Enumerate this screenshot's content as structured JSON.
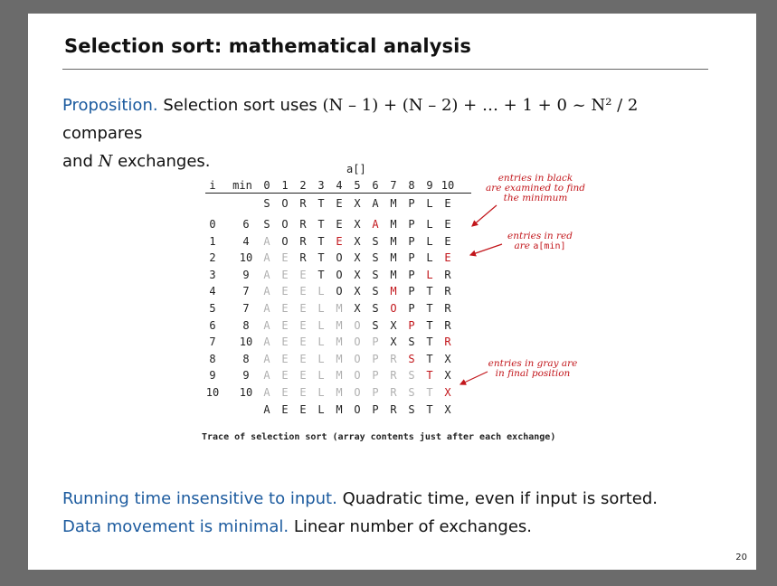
{
  "title": "Selection sort:  mathematical analysis",
  "proposition": {
    "label": "Proposition.",
    "text_before": "Selection sort uses",
    "formula": "(N – 1) + (N – 2) + … + 1 + 0  ~  N² / 2",
    "text_compares": "compares",
    "line2_var": "N",
    "line2_text": "exchanges.",
    "line2_and": "and"
  },
  "trace": {
    "array_label": "a[]",
    "header": {
      "i": "i",
      "min": "min",
      "indices": [
        "0",
        "1",
        "2",
        "3",
        "4",
        "5",
        "6",
        "7",
        "8",
        "9",
        "10"
      ]
    },
    "initial": [
      "S",
      "O",
      "R",
      "T",
      "E",
      "X",
      "A",
      "M",
      "P",
      "L",
      "E"
    ],
    "rows": [
      {
        "i": "0",
        "min": "6",
        "cells": [
          "S",
          "O",
          "R",
          "T",
          "E",
          "X",
          "A",
          "M",
          "P",
          "L",
          "E"
        ],
        "gray": 0,
        "red": 6
      },
      {
        "i": "1",
        "min": "4",
        "cells": [
          "A",
          "O",
          "R",
          "T",
          "E",
          "X",
          "S",
          "M",
          "P",
          "L",
          "E"
        ],
        "gray": 1,
        "red": 4
      },
      {
        "i": "2",
        "min": "10",
        "cells": [
          "A",
          "E",
          "R",
          "T",
          "O",
          "X",
          "S",
          "M",
          "P",
          "L",
          "E"
        ],
        "gray": 2,
        "red": 10
      },
      {
        "i": "3",
        "min": "9",
        "cells": [
          "A",
          "E",
          "E",
          "T",
          "O",
          "X",
          "S",
          "M",
          "P",
          "L",
          "R"
        ],
        "gray": 3,
        "red": 9
      },
      {
        "i": "4",
        "min": "7",
        "cells": [
          "A",
          "E",
          "E",
          "L",
          "O",
          "X",
          "S",
          "M",
          "P",
          "T",
          "R"
        ],
        "gray": 4,
        "red": 7
      },
      {
        "i": "5",
        "min": "7",
        "cells": [
          "A",
          "E",
          "E",
          "L",
          "M",
          "X",
          "S",
          "O",
          "P",
          "T",
          "R"
        ],
        "gray": 5,
        "red": 7
      },
      {
        "i": "6",
        "min": "8",
        "cells": [
          "A",
          "E",
          "E",
          "L",
          "M",
          "O",
          "S",
          "X",
          "P",
          "T",
          "R"
        ],
        "gray": 6,
        "red": 8
      },
      {
        "i": "7",
        "min": "10",
        "cells": [
          "A",
          "E",
          "E",
          "L",
          "M",
          "O",
          "P",
          "X",
          "S",
          "T",
          "R"
        ],
        "gray": 7,
        "red": 10
      },
      {
        "i": "8",
        "min": "8",
        "cells": [
          "A",
          "E",
          "E",
          "L",
          "M",
          "O",
          "P",
          "R",
          "S",
          "T",
          "X"
        ],
        "gray": 8,
        "red": 8
      },
      {
        "i": "9",
        "min": "9",
        "cells": [
          "A",
          "E",
          "E",
          "L",
          "M",
          "O",
          "P",
          "R",
          "S",
          "T",
          "X"
        ],
        "gray": 9,
        "red": 9
      },
      {
        "i": "10",
        "min": "10",
        "cells": [
          "A",
          "E",
          "E",
          "L",
          "M",
          "O",
          "P",
          "R",
          "S",
          "T",
          "X"
        ],
        "gray": 10,
        "red": 10
      }
    ],
    "final": [
      "A",
      "E",
      "E",
      "L",
      "M",
      "O",
      "P",
      "R",
      "S",
      "T",
      "X"
    ],
    "caption": "Trace of selection sort (array contents just after each exchange)",
    "note_black": [
      "entries in black",
      "are examined to find",
      "the minimum"
    ],
    "note_red": [
      "entries in red",
      "are",
      "a[min]"
    ],
    "note_gray": [
      "entries in gray are",
      "in final position"
    ],
    "colors": {
      "red": "#c2161b",
      "gray": "#b0b0b0",
      "black": "#222222"
    }
  },
  "running_time": {
    "label": "Running time insensitive to input.",
    "text": "Quadratic time, even if input is sorted."
  },
  "data_movement": {
    "label": "Data movement is minimal.",
    "text": "Linear number of exchanges."
  },
  "page_number": "20",
  "colors": {
    "accent_blue": "#1b5a9e"
  }
}
